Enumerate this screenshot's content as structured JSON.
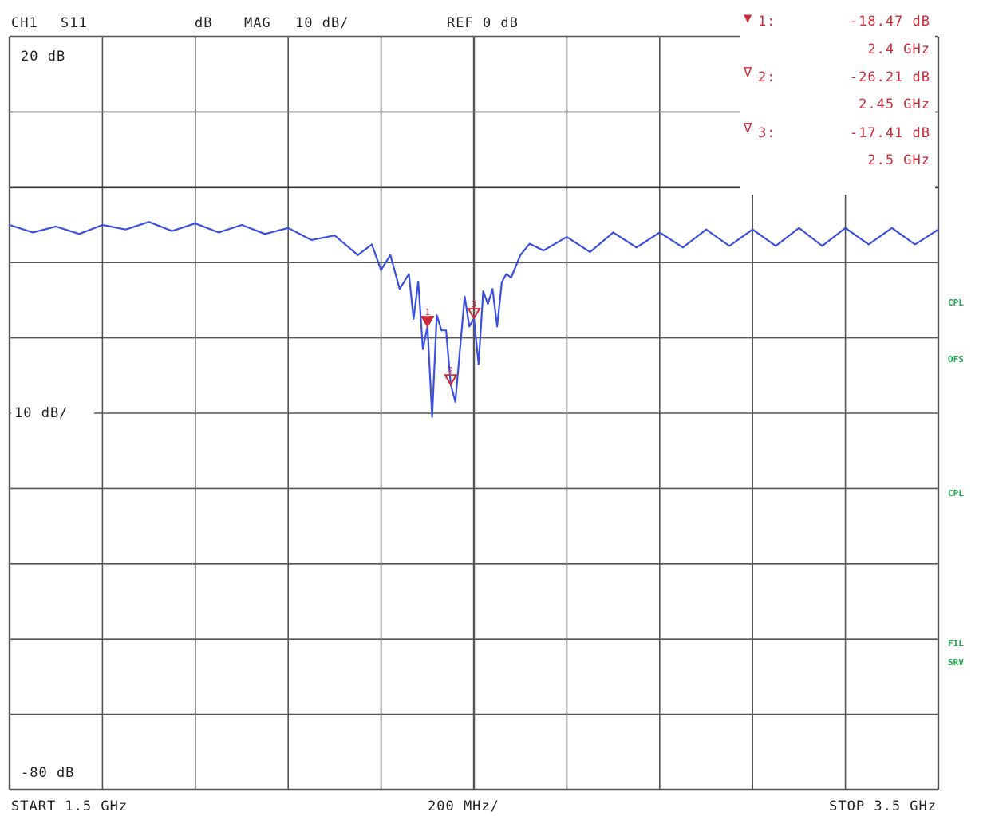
{
  "header": {
    "channel": "CH1",
    "param": "S11",
    "unit": "dB",
    "format": "MAG",
    "scale": "10 dB/",
    "ref": "REF 0 dB"
  },
  "markers_readout": [
    {
      "symbol": "▼",
      "index": "1:",
      "value": "-18.47 dB",
      "freq": "2.4 GHz"
    },
    {
      "symbol": "∇",
      "index": "2:",
      "value": "-26.21 dB",
      "freq": "2.45 GHz"
    },
    {
      "symbol": "∇",
      "index": "3:",
      "value": "-17.41 dB",
      "freq": "2.5 GHz"
    }
  ],
  "side_labels": [
    "CPL",
    "OFS",
    "CPL",
    "FIL",
    "SRV"
  ],
  "scale_labels": {
    "top": "20 dB",
    "mid": "10 dB/",
    "bottom": "-80 dB"
  },
  "footer": {
    "start": "START  1.5 GHz",
    "div": "200 MHz/",
    "stop": "STOP 3.5 GHz"
  },
  "colors": {
    "trace": "#3b4fe0",
    "marker": "#cc2a3a",
    "grid": "#555555",
    "side": "#1aa84a"
  },
  "chart_data": {
    "type": "line",
    "title": "",
    "xlabel": "",
    "ylabel": "",
    "x_unit": "GHz",
    "y_unit": "dB",
    "xlim": [
      1.5,
      3.5
    ],
    "ylim": [
      -80,
      20
    ],
    "x_divisions": 10,
    "y_divisions": 10,
    "reference_level_db": 0,
    "grid": true,
    "series": [
      {
        "name": "",
        "x": [
          1.5,
          1.55,
          1.6,
          1.65,
          1.7,
          1.75,
          1.8,
          1.85,
          1.9,
          1.95,
          2.0,
          2.05,
          2.1,
          2.15,
          2.2,
          2.25,
          2.28,
          2.3,
          2.32,
          2.34,
          2.36,
          2.37,
          2.38,
          2.39,
          2.4,
          2.41,
          2.42,
          2.43,
          2.44,
          2.45,
          2.46,
          2.47,
          2.48,
          2.49,
          2.5,
          2.51,
          2.52,
          2.53,
          2.54,
          2.55,
          2.56,
          2.57,
          2.58,
          2.6,
          2.62,
          2.65,
          2.7,
          2.75,
          2.8,
          2.85,
          2.9,
          2.95,
          3.0,
          3.05,
          3.1,
          3.15,
          3.2,
          3.25,
          3.3,
          3.35,
          3.4,
          3.45,
          3.5
        ],
        "y": [
          -5.0,
          -6.0,
          -5.2,
          -6.2,
          -5.0,
          -5.6,
          -4.6,
          -5.8,
          -4.8,
          -6.0,
          -5.0,
          -6.2,
          -5.4,
          -7.0,
          -6.4,
          -9.0,
          -7.6,
          -11.0,
          -9.0,
          -13.5,
          -11.5,
          -17.5,
          -12.5,
          -21.5,
          -18.5,
          -30.5,
          -17.0,
          -19.0,
          -19.0,
          -26.2,
          -28.5,
          -21.5,
          -14.5,
          -18.5,
          -17.4,
          -23.5,
          -13.8,
          -15.5,
          -13.5,
          -18.5,
          -12.6,
          -11.5,
          -12.0,
          -9.0,
          -7.5,
          -8.4,
          -6.6,
          -8.6,
          -6.0,
          -8.0,
          -6.0,
          -8.0,
          -5.6,
          -7.8,
          -5.6,
          -7.8,
          -5.4,
          -7.8,
          -5.4,
          -7.6,
          -5.4,
          -7.6,
          -5.6
        ]
      }
    ],
    "markers": [
      {
        "id": 1,
        "x": 2.4,
        "y": -18.47
      },
      {
        "id": 2,
        "x": 2.45,
        "y": -26.21
      },
      {
        "id": 3,
        "x": 2.5,
        "y": -17.41
      }
    ]
  }
}
